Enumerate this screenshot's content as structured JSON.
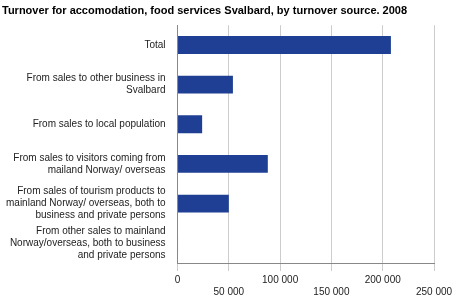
{
  "chart_data": {
    "type": "bar",
    "orientation": "horizontal",
    "title": "Turnover for accomodation, food services Svalbard, by turnover source. 2008",
    "categories": [
      "Total",
      "From sales to other business in Svalbard",
      "From sales to local population",
      "From sales to visitors coming from mailand Norway/ overseas",
      "From sales of tourism products to mainland Norway/ overseas, both to business and private persons",
      "From other sales to mainland Norway/overseas, both to business and private persons"
    ],
    "values": [
      208000,
      54000,
      24000,
      88000,
      50000,
      500
    ],
    "color": "#1f3f94",
    "xlim": [
      0,
      250000
    ],
    "xticks": [
      0,
      {
        "value": 50000,
        "label": "50 000"
      },
      {
        "value": 100000,
        "label": "100 000"
      },
      {
        "value": 150000,
        "label": "150 000"
      },
      {
        "value": 200000,
        "label": "200 000"
      },
      {
        "value": 250000,
        "label": "250 000"
      }
    ],
    "grid": true
  }
}
